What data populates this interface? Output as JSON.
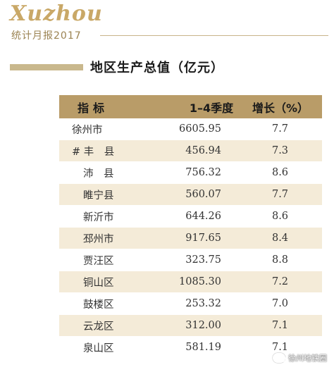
{
  "header": {
    "logo": "Xuzhou",
    "subtitle": "统计月报2017"
  },
  "section": {
    "title": "地区生产总值（亿元）"
  },
  "table": {
    "headers": [
      "指标",
      "1–4季度",
      "增长（%）"
    ],
    "rows": [
      {
        "name": "徐州市",
        "value": "6605.95",
        "growth": "7.7"
      },
      {
        "name": "# 丰　县",
        "value": "456.94",
        "growth": "7.3"
      },
      {
        "name": "沛　县",
        "value": "756.32",
        "growth": "8.6"
      },
      {
        "name": "睢宁县",
        "value": "560.07",
        "growth": "7.7"
      },
      {
        "name": "新沂市",
        "value": "644.26",
        "growth": "8.6"
      },
      {
        "name": "邳州市",
        "value": "917.65",
        "growth": "8.4"
      },
      {
        "name": "贾汪区",
        "value": "323.75",
        "growth": "8.8"
      },
      {
        "name": "铜山区",
        "value": "1085.30",
        "growth": "7.2"
      },
      {
        "name": "鼓楼区",
        "value": "253.32",
        "growth": "7.0"
      },
      {
        "name": "云龙区",
        "value": "312.00",
        "growth": "7.1"
      },
      {
        "name": "泉山区",
        "value": "581.19",
        "growth": "7.1"
      }
    ]
  },
  "watermark": {
    "text": "徐州地铁圈",
    "icon": "wechat-icon"
  }
}
